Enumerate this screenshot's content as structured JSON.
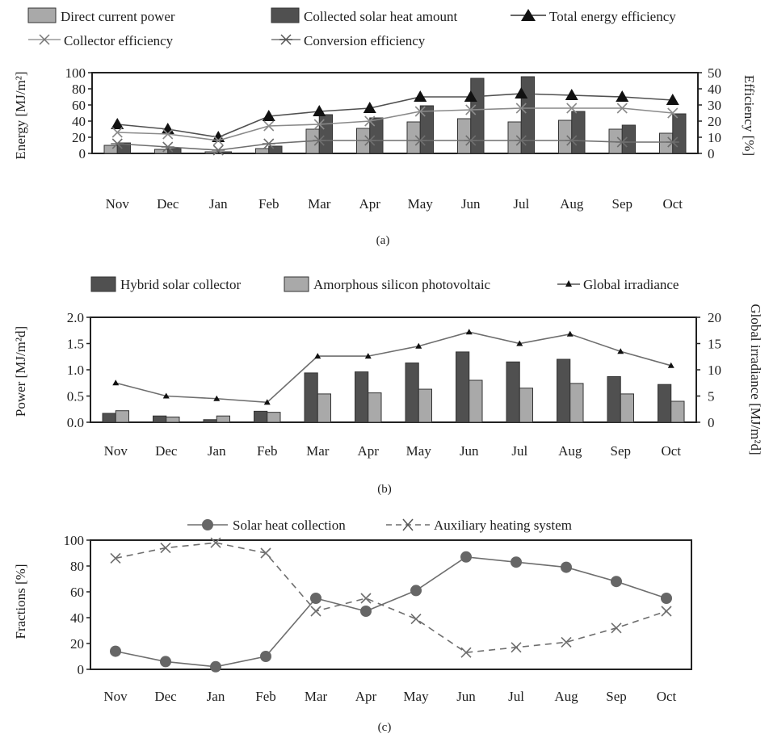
{
  "colors": {
    "light_bar": "#a9a9a9",
    "dark_bar": "#505050",
    "line": "#6e6e6e",
    "dark_line": "#2a2a2a",
    "frame": "#222222",
    "light_line": "#9a9a9a"
  },
  "chart_data": [
    {
      "type": "bar",
      "caption": "(a)",
      "categories": [
        "Nov",
        "Dec",
        "Jan",
        "Feb",
        "Mar",
        "Apr",
        "May",
        "Jun",
        "Jul",
        "Aug",
        "Sep",
        "Oct"
      ],
      "ylabel": "Energy [MJ/m²]",
      "ylabel_right": "Efficiency [%]",
      "ylim": [
        0,
        100
      ],
      "yticks": [
        "0",
        "20",
        "40",
        "60",
        "80",
        "100"
      ],
      "ylim_right": [
        0,
        50
      ],
      "yticks_right": [
        "0",
        "10",
        "20",
        "30",
        "40",
        "50"
      ],
      "legend_position": "top",
      "series": [
        {
          "name": "Direct current power",
          "kind": "bar",
          "axis": "left",
          "color": "#a9a9a9",
          "values": [
            10,
            5,
            2,
            6,
            30,
            31,
            39,
            43,
            39,
            41,
            30,
            25
          ]
        },
        {
          "name": "Collected solar heat amount",
          "kind": "bar",
          "axis": "left",
          "color": "#505050",
          "values": [
            13,
            6,
            2,
            9,
            48,
            44,
            59,
            93,
            95,
            52,
            35,
            49
          ]
        },
        {
          "name": "Total energy efficiency",
          "kind": "line",
          "marker": "triangle",
          "axis": "right",
          "color": "#505050",
          "values": [
            18,
            15,
            10,
            23,
            26,
            28,
            35,
            35,
            37,
            36,
            35,
            33
          ]
        },
        {
          "name": "Collector efficiency",
          "kind": "line",
          "marker": "x",
          "axis": "right",
          "color": "#8a8a8a",
          "values": [
            13,
            12,
            8,
            17,
            18,
            20,
            26,
            27,
            28,
            28,
            28,
            25
          ]
        },
        {
          "name": "Conversion efficiency",
          "kind": "line",
          "marker": "star",
          "axis": "right",
          "color": "#6e6e6e",
          "values": [
            6,
            4,
            2,
            6,
            8,
            8,
            8,
            8,
            8,
            8,
            7,
            7
          ]
        }
      ]
    },
    {
      "type": "bar",
      "caption": "(b)",
      "categories": [
        "Nov",
        "Dec",
        "Jan",
        "Feb",
        "Mar",
        "Apr",
        "May",
        "Jun",
        "Jul",
        "Aug",
        "Sep",
        "Oct"
      ],
      "ylabel": "Power [MJ/m²d]",
      "ylabel_right": "Global irradiance [MJ/m²d]",
      "ylim": [
        0,
        2.0
      ],
      "yticks": [
        "0.0",
        "0.5",
        "1.0",
        "1.5",
        "2.0"
      ],
      "ylim_right": [
        0,
        20
      ],
      "yticks_right": [
        "0",
        "5",
        "10",
        "15",
        "20"
      ],
      "legend_position": "top",
      "series": [
        {
          "name": "Hybrid solar collector",
          "kind": "bar",
          "axis": "left",
          "color": "#505050",
          "values": [
            0.17,
            0.12,
            0.05,
            0.21,
            0.94,
            0.96,
            1.13,
            1.34,
            1.15,
            1.2,
            0.87,
            0.72
          ]
        },
        {
          "name": "Amorphous silicon photovoltaic",
          "kind": "bar",
          "axis": "left",
          "color": "#a9a9a9",
          "values": [
            0.22,
            0.1,
            0.12,
            0.19,
            0.54,
            0.56,
            0.63,
            0.8,
            0.65,
            0.74,
            0.54,
            0.4
          ]
        },
        {
          "name": "Global irradiance",
          "kind": "line",
          "marker": "small-triangle",
          "axis": "right",
          "color": "#6e6e6e",
          "values": [
            7.5,
            5.0,
            4.5,
            3.8,
            12.6,
            12.6,
            14.5,
            17.2,
            15.0,
            16.8,
            13.5,
            10.8
          ]
        }
      ]
    },
    {
      "type": "line",
      "caption": "(c)",
      "categories": [
        "Nov",
        "Dec",
        "Jan",
        "Feb",
        "Mar",
        "Apr",
        "May",
        "Jun",
        "Jul",
        "Aug",
        "Sep",
        "Oct"
      ],
      "ylabel": "Fractions [%]",
      "ylim": [
        0,
        100
      ],
      "yticks": [
        "0",
        "20",
        "40",
        "60",
        "80",
        "100"
      ],
      "legend_position": "top",
      "series": [
        {
          "name": "Solar heat collection",
          "marker": "circle",
          "dash": "solid",
          "color": "#6e6e6e",
          "values": [
            14,
            6,
            2,
            10,
            55,
            45,
            61,
            87,
            83,
            79,
            68,
            55
          ]
        },
        {
          "name": "Auxiliary heating system",
          "marker": "x",
          "dash": "dashed",
          "color": "#6e6e6e",
          "values": [
            86,
            94,
            98,
            90,
            45,
            55,
            39,
            13,
            17,
            21,
            32,
            45
          ]
        }
      ]
    }
  ]
}
